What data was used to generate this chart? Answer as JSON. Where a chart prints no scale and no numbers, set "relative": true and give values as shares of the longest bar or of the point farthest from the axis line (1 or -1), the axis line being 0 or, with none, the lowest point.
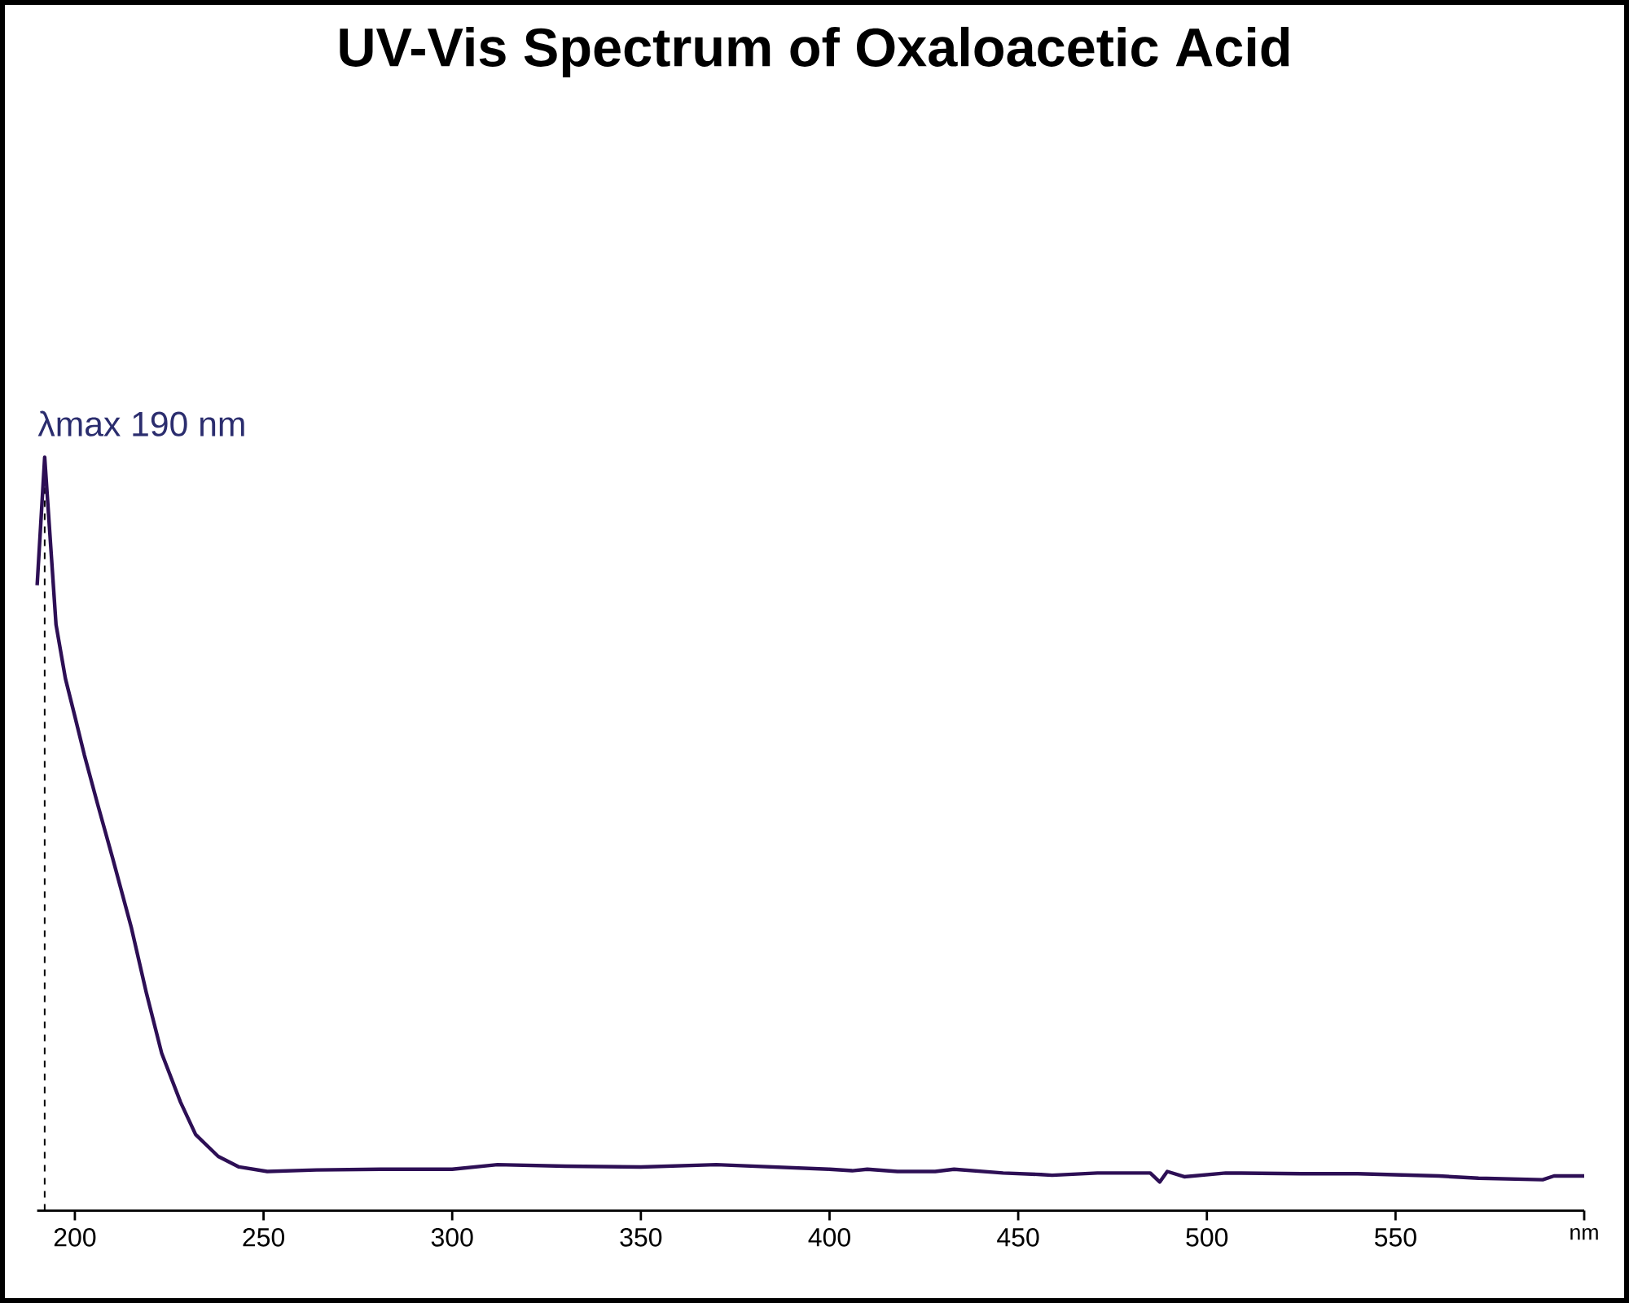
{
  "chart_data": {
    "type": "line",
    "title": "UV-Vis Spectrum of Oxaloacetic Acid",
    "relative": true,
    "xlim": [
      190,
      600
    ],
    "xticks": [
      200,
      250,
      300,
      350,
      400,
      450,
      500,
      550,
      {
        "value": 600,
        "label": "nm"
      }
    ],
    "series": [
      {
        "color": "#2d0f55",
        "x": [
          190,
          192,
          195,
          197.5,
          200,
          202.5,
          206,
          210,
          215,
          219,
          223,
          228,
          232,
          238,
          243.5,
          251,
          264,
          281,
          300,
          312,
          330,
          350,
          370,
          400,
          406,
          410,
          418,
          428,
          433,
          446,
          456,
          459,
          471,
          485,
          487.5,
          489.5,
          494,
          505,
          525,
          540,
          561.5,
          572,
          589,
          592,
          600
        ],
        "values": [
          0.83,
          1.0,
          0.778,
          0.706,
          0.656,
          0.605,
          0.54,
          0.468,
          0.375,
          0.288,
          0.209,
          0.144,
          0.101,
          0.072,
          0.058,
          0.052,
          0.054,
          0.055,
          0.055,
          0.061,
          0.059,
          0.058,
          0.061,
          0.055,
          0.053,
          0.055,
          0.052,
          0.052,
          0.055,
          0.05,
          0.048,
          0.047,
          0.05,
          0.05,
          0.038,
          0.052,
          0.045,
          0.05,
          0.049,
          0.049,
          0.046,
          0.043,
          0.041,
          0.046,
          0.046
        ]
      }
    ],
    "ref_lines": [
      {
        "axis": "x",
        "value": 192,
        "label": "λmax 190 nm",
        "line_style": "dashed",
        "color": "#000000"
      }
    ]
  }
}
